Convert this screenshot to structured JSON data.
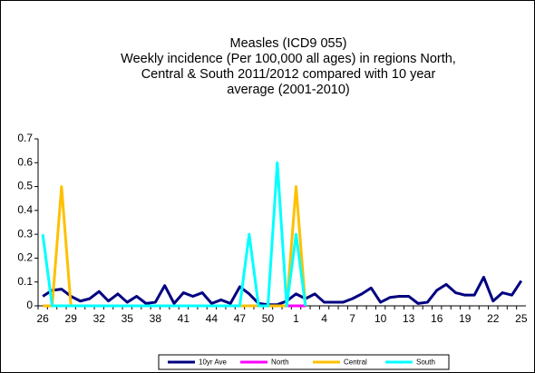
{
  "chart_data": {
    "type": "line",
    "title": [
      "Measles (ICD9 055)",
      "Weekly incidence (Per 100,000 all ages) in regions North,",
      "Central & South 2011/2012 compared with 10 year",
      "average (2001-2010)"
    ],
    "categories": [
      "26",
      null,
      null,
      "29",
      null,
      null,
      "32",
      null,
      null,
      "35",
      null,
      null,
      "38",
      null,
      null,
      "41",
      null,
      null,
      "44",
      null,
      null,
      "47",
      null,
      null,
      "50",
      null,
      null,
      "1",
      null,
      null,
      "4",
      null,
      null,
      "7",
      null,
      null,
      "10",
      null,
      null,
      "13",
      null,
      null,
      "16",
      null,
      null,
      "19",
      null,
      null,
      "22",
      null,
      null,
      "25"
    ],
    "ylim": [
      0,
      0.7
    ],
    "yticks": [
      0,
      0.1,
      0.2,
      0.3,
      0.4,
      0.5,
      0.6,
      0.7
    ],
    "legend": "bottom",
    "series": [
      {
        "name": "10yr Ave",
        "color": "#000080",
        "values": [
          0.04,
          0.065,
          0.07,
          0.04,
          0.02,
          0.03,
          0.06,
          0.02,
          0.05,
          0.015,
          0.04,
          0.01,
          0.015,
          0.085,
          0.01,
          0.055,
          0.04,
          0.055,
          0.01,
          0.025,
          0.01,
          0.08,
          0.05,
          0.01,
          0.005,
          0.005,
          0.02,
          0.05,
          0.03,
          0.05,
          0.015,
          0.015,
          0.015,
          0.03,
          0.05,
          0.075,
          0.015,
          0.035,
          0.04,
          0.04,
          0.01,
          0.015,
          0.065,
          0.09,
          0.055,
          0.045,
          0.045,
          0.12,
          0.02,
          0.055,
          0.045,
          0.105
        ]
      },
      {
        "name": "North",
        "color": "#ff00ff",
        "values": [
          0,
          0,
          0,
          0,
          0,
          0,
          0,
          0,
          0,
          0,
          0,
          0,
          0,
          0,
          0,
          0,
          0,
          0,
          0,
          0,
          0,
          0,
          0,
          0,
          0,
          0,
          0,
          0,
          0,
          null,
          null,
          null,
          null,
          null,
          null,
          null,
          null,
          null,
          null,
          null,
          null,
          null,
          null,
          null,
          null,
          null,
          null,
          null,
          null,
          null,
          null,
          null
        ]
      },
      {
        "name": "Central",
        "color": "#ffc000",
        "values": [
          0,
          0,
          0.5,
          0,
          0,
          0,
          0,
          0,
          0,
          0,
          0,
          0,
          0,
          0,
          0,
          0,
          0,
          0,
          0,
          0,
          0,
          0,
          0,
          0,
          0,
          0,
          0,
          0.5,
          0,
          null,
          null,
          null,
          null,
          null,
          null,
          null,
          null,
          null,
          null,
          null,
          null,
          null,
          null,
          null,
          null,
          null,
          null,
          null,
          null,
          null,
          null,
          null
        ]
      },
      {
        "name": "South",
        "color": "#00ffff",
        "values": [
          0.3,
          0,
          0,
          0,
          0,
          0,
          0,
          0,
          0,
          0,
          0,
          0,
          0,
          0,
          0,
          0,
          0,
          0,
          0,
          0,
          0,
          0,
          0.3,
          0,
          0,
          0.6,
          0,
          0.3,
          0,
          null,
          null,
          null,
          null,
          null,
          null,
          null,
          null,
          null,
          null,
          null,
          null,
          null,
          null,
          null,
          null,
          null,
          null,
          null,
          null,
          null,
          null,
          null
        ]
      }
    ]
  }
}
